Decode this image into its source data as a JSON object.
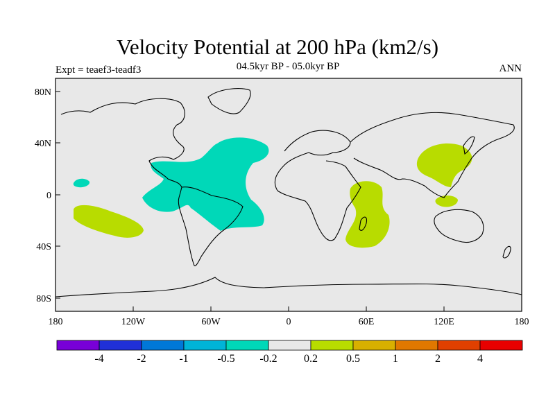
{
  "title": "Velocity Potential at 200 hPa (km2/s)",
  "subtitle": "04.5kyr BP - 05.0kyr BP",
  "left_label": "Expt = teaef3-teadf3",
  "right_label": "ANN",
  "map": {
    "lat_ticks": [
      "80N",
      "40N",
      "0",
      "40S",
      "80S"
    ],
    "lon_ticks": [
      "180",
      "120W",
      "60W",
      "0",
      "60E",
      "120E",
      "180"
    ],
    "colors": {
      "background": "#e8e8e8",
      "negative_fill": "#00d8b8",
      "positive_fill": "#b8dc00"
    }
  },
  "colorbar": {
    "colors": [
      "#7800d8",
      "#2030d8",
      "#0078d8",
      "#00b4d8",
      "#00d8b8",
      "#e8e8e8",
      "#b8dc00",
      "#d8b000",
      "#e07800",
      "#e04000",
      "#e80000"
    ],
    "labels": [
      "-4",
      "-2",
      "-1",
      "-0.5",
      "-0.2",
      "0.2",
      "0.5",
      "1",
      "2",
      "4"
    ]
  }
}
